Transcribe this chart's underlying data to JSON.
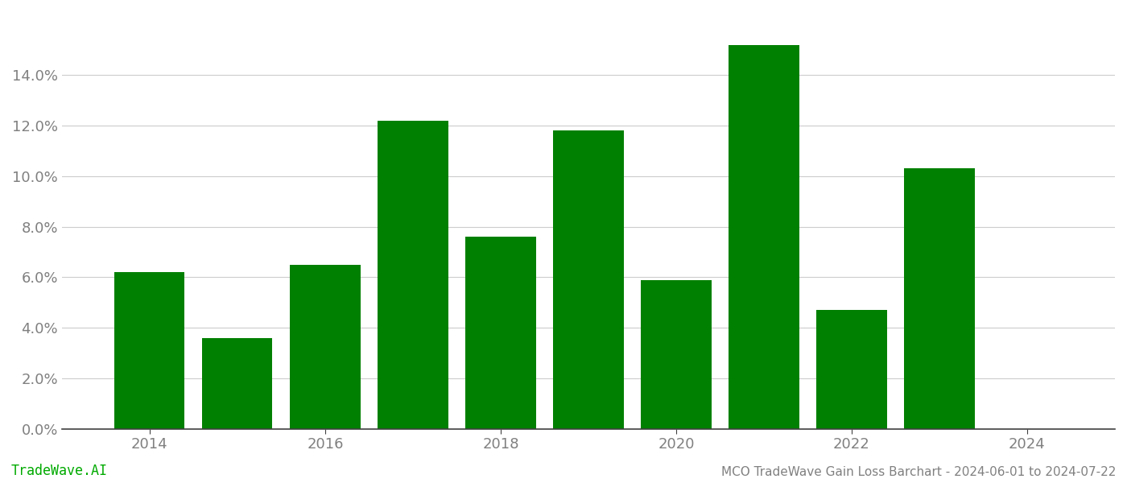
{
  "years": [
    2014,
    2015,
    2016,
    2017,
    2018,
    2019,
    2020,
    2021,
    2022,
    2023
  ],
  "values": [
    0.062,
    0.036,
    0.065,
    0.122,
    0.076,
    0.118,
    0.059,
    0.152,
    0.047,
    0.103
  ],
  "bar_color": "#008000",
  "background_color": "#ffffff",
  "grid_color": "#cccccc",
  "ylabel_color": "#808080",
  "xlabel_color": "#808080",
  "ylim": [
    0,
    0.165
  ],
  "yticks": [
    0.0,
    0.02,
    0.04,
    0.06,
    0.08,
    0.1,
    0.12,
    0.14
  ],
  "xtick_positions": [
    2014,
    2016,
    2018,
    2020,
    2022,
    2024
  ],
  "xtick_labels": [
    "2014",
    "2016",
    "2018",
    "2020",
    "2022",
    "2024"
  ],
  "footer_left": "TradeWave.AI",
  "footer_right": "MCO TradeWave Gain Loss Barchart - 2024-06-01 to 2024-07-22",
  "footer_color": "#808080",
  "footer_left_color": "#00aa00",
  "bar_width": 0.8
}
